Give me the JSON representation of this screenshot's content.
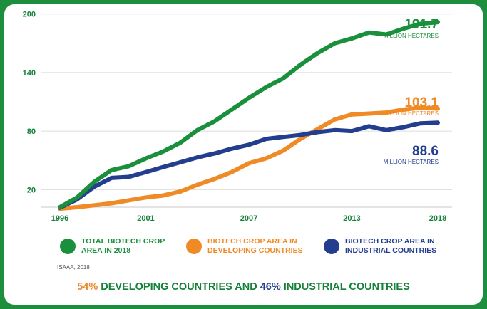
{
  "chart_data": {
    "type": "line",
    "x": [
      1996,
      1997,
      1998,
      1999,
      2000,
      2001,
      2002,
      2003,
      2004,
      2005,
      2006,
      2007,
      2008,
      2009,
      2010,
      2011,
      2012,
      2013,
      2014,
      2015,
      2016,
      2017,
      2018
    ],
    "x_ticks": [
      "1996",
      "2001",
      "2007",
      "2013",
      "2018"
    ],
    "y_ticks": [
      "20",
      "80",
      "140",
      "200"
    ],
    "ylim": [
      2,
      210
    ],
    "grid": "horizontal",
    "series": [
      {
        "name": "TOTAL BIOTECH CROP AREA IN 2018",
        "color": "#1a8f3c",
        "values": [
          2,
          12,
          28,
          40,
          44,
          52,
          59,
          68,
          81,
          90,
          102,
          114,
          125,
          134,
          148,
          160,
          170,
          175,
          181,
          179,
          185,
          190,
          191.7
        ],
        "end_value": "191.7",
        "end_unit": "MILLION HECTARES"
      },
      {
        "name": "BIOTECH CROP AREA IN DEVELOPING COUNTRIES",
        "color": "#ef8a26",
        "values": [
          0.5,
          2,
          4,
          6,
          9,
          12,
          14,
          18,
          25,
          31,
          38,
          47,
          52,
          60,
          72,
          82,
          92,
          97,
          98,
          99,
          102,
          104,
          103.1
        ],
        "end_value": "103.1",
        "end_unit": "MILLION HECTARES"
      },
      {
        "name": "BIOTECH CROP AREA IN INDUSTRIAL COUNTRIES",
        "color": "#243e8f",
        "values": [
          1.5,
          10,
          23,
          32,
          33,
          38,
          43,
          48,
          53,
          57,
          62,
          66,
          72,
          74,
          76,
          79,
          81,
          80,
          85,
          81,
          84,
          88,
          88.6
        ],
        "end_value": "88.6",
        "end_unit": "MILLION HECTARES"
      }
    ]
  },
  "source": "ISAAA, 2018",
  "summary": {
    "pct1": "54%",
    "text1": " DEVELOPING COUNTRIES AND ",
    "pct2": "46%",
    "text2": " INDUSTRIAL COUNTRIES"
  }
}
